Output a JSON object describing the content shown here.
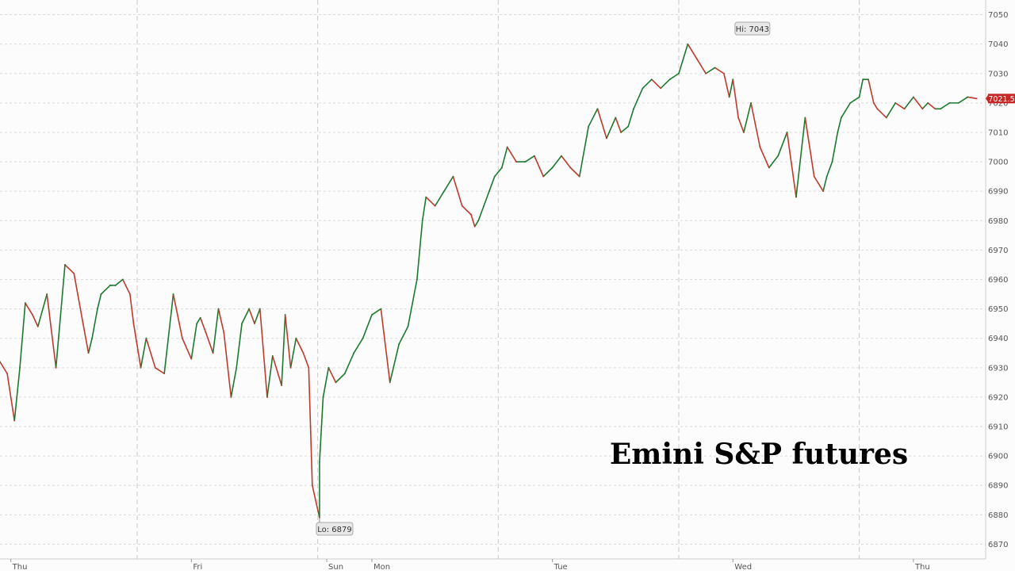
{
  "chart_data": {
    "type": "line",
    "title": "Emini S&P futures",
    "xlabel": "",
    "ylabel": "",
    "ylim": [
      6865,
      7055
    ],
    "y_ticks": [
      6870,
      6880,
      6890,
      6900,
      6910,
      6920,
      6930,
      6940,
      6950,
      6960,
      6970,
      6980,
      6990,
      7000,
      7010,
      7020,
      7030,
      7040,
      7050
    ],
    "x_ticks": [
      {
        "label": "Thu",
        "t": 0.0
      },
      {
        "label": "Fri",
        "t": 1.0
      },
      {
        "label": "Sun",
        "t": 1.75
      },
      {
        "label": "Mon",
        "t": 2.0
      },
      {
        "label": "Tue",
        "t": 3.0
      },
      {
        "label": "Wed",
        "t": 4.0
      },
      {
        "label": "Thu",
        "t": 5.0
      }
    ],
    "x_range": [
      -0.06,
      5.4
    ],
    "session_breaks": [
      0.7,
      1.7,
      2.7,
      3.7,
      4.7
    ],
    "series": [
      {
        "t": [
          -0.06,
          -0.02,
          0.02,
          0.05,
          0.08,
          0.12,
          0.15,
          0.2,
          0.25,
          0.3,
          0.35,
          0.4,
          0.43,
          0.45,
          0.48,
          0.5,
          0.55,
          0.58,
          0.62,
          0.66,
          0.68,
          0.72,
          0.75,
          0.8,
          0.85,
          0.9,
          0.95,
          1.0,
          1.03,
          1.05,
          1.08,
          1.12,
          1.15,
          1.18,
          1.22,
          1.25,
          1.28,
          1.32,
          1.35,
          1.38,
          1.42,
          1.45,
          1.5,
          1.52,
          1.55,
          1.58,
          1.62,
          1.65,
          1.67,
          1.71,
          1.71,
          1.73,
          1.76,
          1.8,
          1.85,
          1.9,
          1.95,
          2.0,
          2.05,
          2.1,
          2.15,
          2.2,
          2.25,
          2.28,
          2.3,
          2.35,
          2.4,
          2.45,
          2.5,
          2.55,
          2.57,
          2.59,
          2.62,
          2.65,
          2.68,
          2.72,
          2.75,
          2.8,
          2.85,
          2.9,
          2.95,
          3.0,
          3.05,
          3.1,
          3.15,
          3.2,
          3.25,
          3.3,
          3.35,
          3.38,
          3.42,
          3.45,
          3.5,
          3.55,
          3.6,
          3.65,
          3.7,
          3.75,
          3.8,
          3.85,
          3.9,
          3.95,
          3.98,
          4.0,
          4.03,
          4.06,
          4.1,
          4.15,
          4.2,
          4.25,
          4.3,
          4.35,
          4.4,
          4.45,
          4.5,
          4.52,
          4.55,
          4.58,
          4.6,
          4.65,
          4.7,
          4.72,
          4.75,
          4.78,
          4.8,
          4.85,
          4.9,
          4.95,
          5.0,
          5.05,
          5.08,
          5.12,
          5.15,
          5.2,
          5.25,
          5.3,
          5.35
        ],
        "values": [
          6932,
          6928,
          6912,
          6930,
          6952,
          6948,
          6944,
          6955,
          6930,
          6965,
          6962,
          6945,
          6935,
          6940,
          6950,
          6955,
          6958,
          6958,
          6960,
          6955,
          6945,
          6930,
          6940,
          6930,
          6928,
          6955,
          6940,
          6933,
          6945,
          6947,
          6942,
          6935,
          6950,
          6942,
          6920,
          6930,
          6945,
          6950,
          6945,
          6950,
          6920,
          6934,
          6924,
          6948,
          6930,
          6940,
          6935,
          6930,
          6890,
          6879,
          6898,
          6920,
          6930,
          6925,
          6928,
          6935,
          6940,
          6948,
          6950,
          6925,
          6938,
          6944,
          6960,
          6980,
          6988,
          6985,
          6990,
          6995,
          6985,
          6982,
          6978,
          6980,
          6985,
          6990,
          6995,
          6998,
          7005,
          7000,
          7000,
          7002,
          6995,
          6998,
          7002,
          6998,
          6995,
          7012,
          7018,
          7008,
          7015,
          7010,
          7012,
          7018,
          7025,
          7028,
          7025,
          7028,
          7030,
          7040,
          7035,
          7030,
          7032,
          7030,
          7022,
          7028,
          7015,
          7010,
          7020,
          7005,
          6998,
          7002,
          7010,
          6988,
          7015,
          6995,
          6990,
          6995,
          7000,
          7010,
          7015,
          7020,
          7022,
          7028,
          7028,
          7020,
          7018,
          7015,
          7020,
          7018,
          7022,
          7018,
          7020,
          7018,
          7018,
          7020,
          7020,
          7022,
          7021.5
        ]
      }
    ],
    "annotations": {
      "high_label": "Hi: 7043",
      "high": {
        "t": 4.02,
        "value": 7043
      },
      "low_label": "Lo: 6879",
      "low": {
        "t": 1.71,
        "value": 6879
      },
      "last_price_label": "7021.5",
      "last_price": 7021.5
    },
    "grid": true,
    "legend": "none"
  },
  "colors": {
    "up": "#1c7a2e",
    "down": "#c0392b",
    "background": "#fcfcfc",
    "grid": "#dcdcdc",
    "last_price_badge": "#c62828",
    "tick_text": "#555555",
    "title": "#000000"
  }
}
